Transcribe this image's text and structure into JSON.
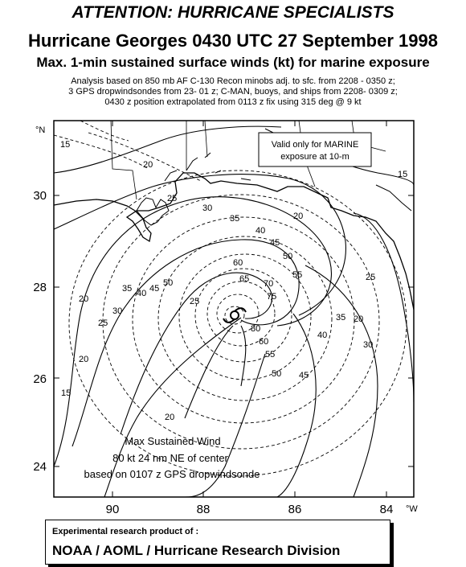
{
  "header": {
    "attention": "ATTENTION: HURRICANE SPECIALISTS",
    "title": "Hurricane Georges 0430 UTC 27 September 1998",
    "subtitle": "Max. 1-min sustained surface winds (kt) for marine exposure",
    "note_line1": "Analysis based on 850 mb AF C-130 Recon minobs adj. to sfc. from 2208 - 0350 z;",
    "note_line2": "3 GPS dropwindsondes from 23- 01 z; C-MAN, buoys, and ships from 2208- 0309 z;",
    "note_line3": "0430 z position extrapolated from 0113 z fix using 315 deg @ 9 kt"
  },
  "map": {
    "lat_unit": "°N",
    "lon_unit": "°W",
    "lat_labels": [
      "30",
      "28",
      "26",
      "24"
    ],
    "lon_labels": [
      "90",
      "88",
      "86",
      "84"
    ],
    "valid_box": {
      "line1": "Valid only for MARINE",
      "line2": "exposure at 10-m"
    },
    "max_wind": {
      "line1": "Max Sustained Wind",
      "line2": "80 kt 24 nm NE of center",
      "line3": "based on 0107 z GPS dropwindsonde"
    },
    "isotach_labels": [
      "15",
      "20",
      "25",
      "30",
      "35",
      "40",
      "45",
      "50",
      "55",
      "60",
      "65",
      "70",
      "75",
      "80",
      "60",
      "55",
      "50",
      "45",
      "40",
      "35",
      "30",
      "25",
      "20",
      "15",
      "20",
      "25",
      "30",
      "35",
      "40",
      "45",
      "50",
      "15",
      "20",
      "20",
      "20",
      "25"
    ]
  },
  "credit": {
    "line1": "Experimental research product of :",
    "line2": "NOAA / AOML / Hurricane Research Division"
  }
}
